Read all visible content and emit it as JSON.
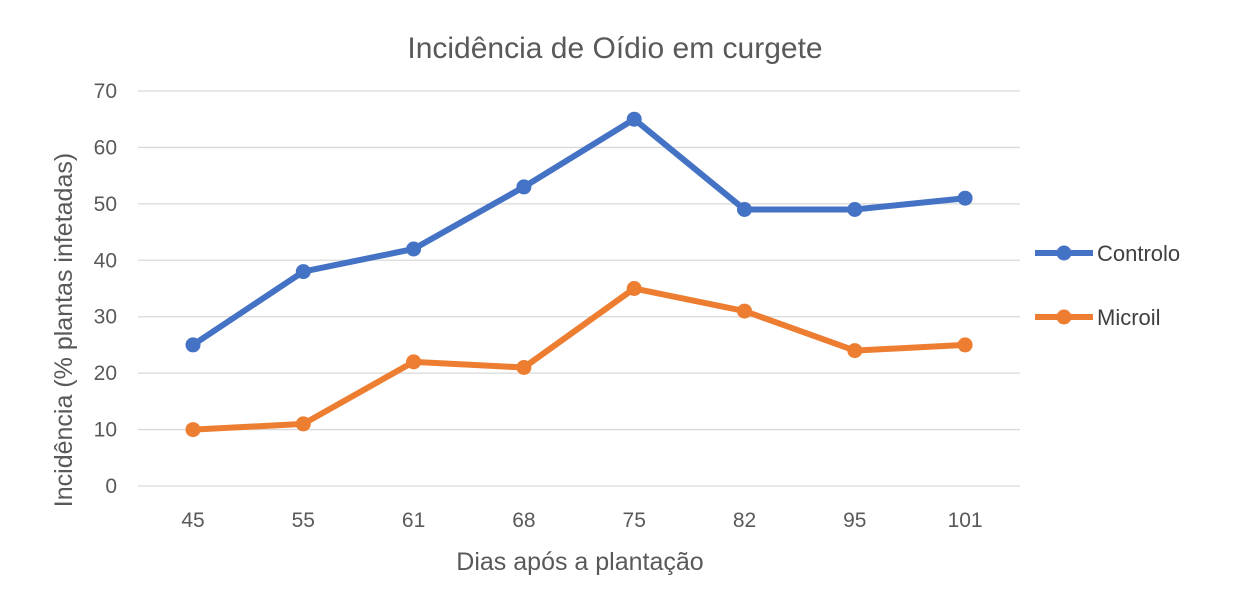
{
  "chart_data": {
    "type": "line",
    "title": "Incidência de Oídio em curgete",
    "xlabel": "Dias após a plantação",
    "ylabel": "Incidência  (% plantas infetadas)",
    "categories": [
      "45",
      "55",
      "61",
      "68",
      "75",
      "82",
      "95",
      "101"
    ],
    "ylim": [
      0,
      70
    ],
    "yticks": [
      0,
      10,
      20,
      30,
      40,
      50,
      60,
      70
    ],
    "grid": true,
    "legend_position": "right",
    "series": [
      {
        "name": "Controlo",
        "color": "#4472c4",
        "values": [
          25,
          38,
          42,
          53,
          65,
          49,
          49,
          51
        ]
      },
      {
        "name": "Microil",
        "color": "#ed7d31",
        "values": [
          10,
          11,
          22,
          21,
          35,
          31,
          24,
          25
        ]
      }
    ]
  }
}
